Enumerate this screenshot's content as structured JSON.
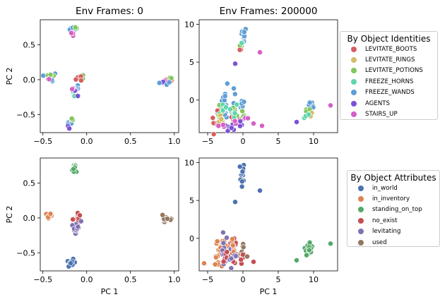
{
  "chart_data": [
    {
      "type": "scatter",
      "title": "Env Frames: 0",
      "xlabel": "",
      "ylabel": "PC 2",
      "xlim": [
        -0.53,
        1.05
      ],
      "ylim": [
        -0.76,
        0.86
      ],
      "xticks": [
        -0.5,
        0.0,
        0.5,
        1.0
      ],
      "xtick_labels": [
        "−0.5",
        "0.0",
        "0.5",
        "1.0"
      ],
      "yticks": [
        -0.5,
        0.0,
        0.5
      ],
      "ytick_labels": [
        "−0.5",
        "0.0",
        "0.5"
      ],
      "legend_ref": "identities",
      "clusters": [
        {
          "series": "FREEZE_WANDS",
          "x": -0.15,
          "y": 0.73,
          "sx": 0.02,
          "sy": 0.035,
          "n": 7
        },
        {
          "series": "LEVITATE_POTIONS",
          "x": -0.12,
          "y": 0.76,
          "sx": 0.01,
          "sy": 0.015,
          "n": 3
        },
        {
          "series": "STAIRS_UP",
          "x": -0.17,
          "y": 0.66,
          "sx": 0.01,
          "sy": 0.02,
          "n": 3
        },
        {
          "series": "FREEZE_WANDS",
          "x": -0.42,
          "y": 0.04,
          "sx": 0.03,
          "sy": 0.03,
          "n": 6
        },
        {
          "series": "LEVITATE_POTIONS",
          "x": -0.41,
          "y": 0.07,
          "sx": 0.02,
          "sy": 0.015,
          "n": 4
        },
        {
          "series": "STAIRS_UP",
          "x": -0.44,
          "y": 0.0,
          "sx": 0.01,
          "sy": 0.01,
          "n": 2
        },
        {
          "series": "LEVITATE_POTIONS",
          "x": -0.08,
          "y": 0.04,
          "sx": 0.025,
          "sy": 0.02,
          "n": 5
        },
        {
          "series": "LEVITATE_BOOTS",
          "x": -0.1,
          "y": 0.02,
          "sx": 0.02,
          "sy": 0.02,
          "n": 4
        },
        {
          "series": "FREEZE_WANDS",
          "x": -0.1,
          "y": -0.1,
          "sx": 0.02,
          "sy": 0.04,
          "n": 5
        },
        {
          "series": "FREEZE_HORNS",
          "x": -0.14,
          "y": -0.15,
          "sx": 0.02,
          "sy": 0.03,
          "n": 4
        },
        {
          "series": "AGENTS",
          "x": -0.13,
          "y": -0.18,
          "sx": 0.02,
          "sy": 0.02,
          "n": 3
        },
        {
          "series": "STAIRS_UP",
          "x": -0.16,
          "y": -0.13,
          "sx": 0.01,
          "sy": 0.02,
          "n": 2
        },
        {
          "series": "FREEZE_WANDS",
          "x": -0.18,
          "y": -0.62,
          "sx": 0.02,
          "sy": 0.03,
          "n": 6
        },
        {
          "series": "LEVITATE_POTIONS",
          "x": -0.17,
          "y": -0.58,
          "sx": 0.01,
          "sy": 0.015,
          "n": 3
        },
        {
          "series": "AGENTS",
          "x": -0.2,
          "y": -0.68,
          "sx": 0.01,
          "sy": 0.01,
          "n": 2
        },
        {
          "series": "LEVITATE_BOOTS",
          "x": 0.92,
          "y": 0.0,
          "sx": 0.03,
          "sy": 0.02,
          "n": 5
        },
        {
          "series": "LEVITATE_POTIONS",
          "x": 0.95,
          "y": 0.03,
          "sx": 0.01,
          "sy": 0.015,
          "n": 3
        },
        {
          "series": "STAIRS_UP",
          "x": 0.89,
          "y": -0.02,
          "sx": 0.01,
          "sy": 0.01,
          "n": 2
        },
        {
          "series": "AGENTS",
          "x": 0.87,
          "y": -0.04,
          "sx": 0.01,
          "sy": 0.01,
          "n": 2
        },
        {
          "series": "FREEZE_WANDS",
          "x": 0.9,
          "y": -0.05,
          "sx": 0.02,
          "sy": 0.01,
          "n": 3
        }
      ]
    },
    {
      "type": "scatter",
      "title": "Env Frames: 200000",
      "xlabel": "",
      "ylabel": "",
      "xlim": [
        -6.2,
        13.4
      ],
      "ylim": [
        -4.3,
        10.6
      ],
      "xticks": [
        -5,
        0,
        5,
        10
      ],
      "xtick_labels": [
        "−5",
        "0",
        "5",
        "10"
      ],
      "yticks": [
        0,
        5,
        10
      ],
      "ytick_labels": [
        "0",
        "5",
        "10"
      ],
      "legend_ref": "identities",
      "clusters": [
        {
          "series": "FREEZE_WANDS",
          "x": 0.0,
          "y": 8.7,
          "sx": 0.15,
          "sy": 0.6,
          "n": 9
        },
        {
          "series": "LEVITATE_POTIONS",
          "x": -0.3,
          "y": 7.3,
          "sx": 0.15,
          "sy": 0.35,
          "n": 5
        },
        {
          "series": "LEVITATE_BOOTS",
          "x": -0.35,
          "y": 6.4,
          "sx": 0.1,
          "sy": 0.15,
          "n": 3
        },
        {
          "series": "FREEZE_HORNS",
          "x": -0.1,
          "y": 7.7,
          "sx": 0.1,
          "sy": 0.2,
          "n": 2
        },
        {
          "series": "STAIRS_UP",
          "x": 2.4,
          "y": 6.3,
          "sx": 0.05,
          "sy": 0.05,
          "n": 1
        },
        {
          "series": "AGENTS",
          "x": -1.1,
          "y": 4.8,
          "sx": 0.05,
          "sy": 0.05,
          "n": 1
        },
        {
          "series": "FREEZE_WANDS",
          "x": -2.6,
          "y": -0.4,
          "sx": 0.25,
          "sy": 1.2,
          "n": 14
        },
        {
          "series": "LEVITATE_BOOTS",
          "x": -3.6,
          "y": -2.4,
          "sx": 0.3,
          "sy": 0.7,
          "n": 8
        },
        {
          "series": "LEVITATE_POTIONS",
          "x": -3.0,
          "y": -2.0,
          "sx": 0.3,
          "sy": 0.9,
          "n": 10
        },
        {
          "series": "FREEZE_HORNS",
          "x": -2.8,
          "y": -1.2,
          "sx": 0.2,
          "sy": 0.6,
          "n": 6
        },
        {
          "series": "LEVITATE_RINGS",
          "x": -3.2,
          "y": -2.8,
          "sx": 0.2,
          "sy": 0.5,
          "n": 5
        },
        {
          "series": "AGENTS",
          "x": -2.5,
          "y": -3.4,
          "sx": 0.5,
          "sy": 0.3,
          "n": 5
        },
        {
          "series": "STAIRS_UP",
          "x": -3.0,
          "y": -3.2,
          "sx": 0.3,
          "sy": 0.3,
          "n": 3
        },
        {
          "series": "FREEZE_WANDS",
          "x": -1.3,
          "y": -0.8,
          "sx": 0.2,
          "sy": 1.1,
          "n": 12
        },
        {
          "series": "LEVITATE_BOOTS",
          "x": -1.4,
          "y": -2.5,
          "sx": 0.2,
          "sy": 0.7,
          "n": 7
        },
        {
          "series": "LEVITATE_POTIONS",
          "x": -1.2,
          "y": -1.8,
          "sx": 0.2,
          "sy": 0.8,
          "n": 7
        },
        {
          "series": "FREEZE_HORNS",
          "x": -1.3,
          "y": -1.0,
          "sx": 0.15,
          "sy": 0.5,
          "n": 4
        },
        {
          "series": "AGENTS",
          "x": -1.5,
          "y": -3.5,
          "sx": 0.2,
          "sy": 0.25,
          "n": 4
        },
        {
          "series": "STAIRS_UP",
          "x": -1.0,
          "y": -3.0,
          "sx": 0.2,
          "sy": 0.3,
          "n": 3
        },
        {
          "series": "LEVITATE_BOOTS",
          "x": -0.2,
          "y": -2.2,
          "sx": 0.2,
          "sy": 0.5,
          "n": 5
        },
        {
          "series": "FREEZE_WANDS",
          "x": -0.1,
          "y": -1.0,
          "sx": 0.2,
          "sy": 0.6,
          "n": 6
        },
        {
          "series": "LEVITATE_POTIONS",
          "x": 0.0,
          "y": -1.6,
          "sx": 0.15,
          "sy": 0.5,
          "n": 4
        },
        {
          "series": "STAIRS_UP",
          "x": 0.1,
          "y": -2.5,
          "sx": 0.15,
          "sy": 0.3,
          "n": 3
        },
        {
          "series": "AGENTS",
          "x": -0.3,
          "y": -3.2,
          "sx": 0.2,
          "sy": 0.3,
          "n": 3
        },
        {
          "series": "STAIRS_UP",
          "x": 0.7,
          "y": -2.4,
          "sx": 0.05,
          "sy": 0.05,
          "n": 1
        },
        {
          "series": "STAIRS_UP",
          "x": 1.5,
          "y": -3.1,
          "sx": 0.05,
          "sy": 0.05,
          "n": 1
        },
        {
          "series": "STAIRS_UP",
          "x": 2.7,
          "y": -3.4,
          "sx": 0.05,
          "sy": 0.05,
          "n": 1
        },
        {
          "series": "FREEZE_WANDS",
          "x": 9.7,
          "y": -0.8,
          "sx": 0.3,
          "sy": 0.4,
          "n": 6
        },
        {
          "series": "LEVITATE_POTIONS",
          "x": 9.3,
          "y": -1.7,
          "sx": 0.3,
          "sy": 0.3,
          "n": 5
        },
        {
          "series": "LEVITATE_RINGS",
          "x": 9.4,
          "y": -1.9,
          "sx": 0.2,
          "sy": 0.2,
          "n": 3
        },
        {
          "series": "FREEZE_HORNS",
          "x": 9.0,
          "y": -2.2,
          "sx": 0.2,
          "sy": 0.2,
          "n": 3
        },
        {
          "series": "AGENTS",
          "x": 7.6,
          "y": -2.9,
          "sx": 0.05,
          "sy": 0.05,
          "n": 1
        },
        {
          "series": "STAIRS_UP",
          "x": 12.4,
          "y": -0.7,
          "sx": 0.05,
          "sy": 0.05,
          "n": 1
        }
      ]
    },
    {
      "type": "scatter",
      "title": "",
      "xlabel": "PC 1",
      "ylabel": "PC 2",
      "xlim": [
        -0.53,
        1.05
      ],
      "ylim": [
        -0.76,
        0.86
      ],
      "xticks": [
        -0.5,
        0.0,
        0.5,
        1.0
      ],
      "xtick_labels": [
        "−0.5",
        "0.0",
        "0.5",
        "1.0"
      ],
      "yticks": [
        -0.5,
        0.0,
        0.5
      ],
      "ytick_labels": [
        "−0.5",
        "0.0",
        "0.5"
      ],
      "legend_ref": "attributes",
      "clusters": [
        {
          "series": "standing_on_top",
          "x": -0.14,
          "y": 0.7,
          "sx": 0.02,
          "sy": 0.04,
          "n": 12
        },
        {
          "series": "in_inventory",
          "x": -0.42,
          "y": 0.04,
          "sx": 0.03,
          "sy": 0.025,
          "n": 10
        },
        {
          "series": "no_exist",
          "x": -0.1,
          "y": 0.0,
          "sx": 0.03,
          "sy": 0.035,
          "n": 12
        },
        {
          "series": "levitating",
          "x": -0.12,
          "y": -0.15,
          "sx": 0.03,
          "sy": 0.04,
          "n": 12
        },
        {
          "series": "in_world",
          "x": -0.18,
          "y": -0.63,
          "sx": 0.02,
          "sy": 0.03,
          "n": 10
        },
        {
          "series": "used",
          "x": 0.91,
          "y": -0.01,
          "sx": 0.035,
          "sy": 0.03,
          "n": 12
        }
      ]
    },
    {
      "type": "scatter",
      "title": "",
      "xlabel": "PC 1",
      "ylabel": "",
      "xlim": [
        -6.2,
        13.4
      ],
      "ylim": [
        -4.3,
        10.6
      ],
      "xticks": [
        -5,
        0,
        5,
        10
      ],
      "xtick_labels": [
        "−5",
        "0",
        "5",
        "10"
      ],
      "yticks": [
        0,
        5,
        10
      ],
      "ytick_labels": [
        "0",
        "5",
        "10"
      ],
      "legend_ref": "attributes",
      "clusters": [
        {
          "series": "in_world",
          "x": -0.1,
          "y": 8.3,
          "sx": 0.2,
          "sy": 0.8,
          "n": 14
        },
        {
          "series": "in_world",
          "x": 2.4,
          "y": 6.3,
          "sx": 0.05,
          "sy": 0.05,
          "n": 1
        },
        {
          "series": "in_world",
          "x": -1.1,
          "y": 4.8,
          "sx": 0.05,
          "sy": 0.05,
          "n": 1
        },
        {
          "series": "in_inventory",
          "x": -3.6,
          "y": -2.0,
          "sx": 0.5,
          "sy": 1.0,
          "n": 16
        },
        {
          "series": "in_inventory",
          "x": -2.8,
          "y": -1.0,
          "sx": 0.3,
          "sy": 0.8,
          "n": 8
        },
        {
          "series": "in_inventory",
          "x": -5.5,
          "y": -3.3,
          "sx": 0.05,
          "sy": 0.05,
          "n": 1
        },
        {
          "series": "levitating",
          "x": -2.7,
          "y": -1.5,
          "sx": 0.35,
          "sy": 1.1,
          "n": 10
        },
        {
          "series": "levitating",
          "x": -2.5,
          "y": -3.3,
          "sx": 0.4,
          "sy": 0.3,
          "n": 6
        },
        {
          "series": "no_exist",
          "x": -2.4,
          "y": -2.6,
          "sx": 0.3,
          "sy": 0.5,
          "n": 8
        },
        {
          "series": "no_exist",
          "x": -1.3,
          "y": -1.8,
          "sx": 0.2,
          "sy": 1.2,
          "n": 12
        },
        {
          "series": "in_inventory",
          "x": -1.4,
          "y": -1.2,
          "sx": 0.15,
          "sy": 0.9,
          "n": 8
        },
        {
          "series": "levitating",
          "x": -1.5,
          "y": -2.8,
          "sx": 0.2,
          "sy": 0.6,
          "n": 6
        },
        {
          "series": "used",
          "x": -0.2,
          "y": -1.4,
          "sx": 0.2,
          "sy": 0.9,
          "n": 10
        },
        {
          "series": "no_exist",
          "x": -0.1,
          "y": -2.4,
          "sx": 0.15,
          "sy": 0.5,
          "n": 4
        },
        {
          "series": "used",
          "x": 0.6,
          "y": -2.4,
          "sx": 0.05,
          "sy": 0.05,
          "n": 1
        },
        {
          "series": "no_exist",
          "x": 1.5,
          "y": -3.1,
          "sx": 0.05,
          "sy": 0.05,
          "n": 1
        },
        {
          "series": "standing_on_top",
          "x": 9.4,
          "y": -1.4,
          "sx": 0.35,
          "sy": 0.5,
          "n": 14
        },
        {
          "series": "standing_on_top",
          "x": 7.6,
          "y": -2.9,
          "sx": 0.05,
          "sy": 0.05,
          "n": 1
        },
        {
          "series": "standing_on_top",
          "x": 12.4,
          "y": -0.7,
          "sx": 0.05,
          "sy": 0.05,
          "n": 1
        }
      ]
    }
  ],
  "legends": {
    "identities": {
      "title": "By Object Identities",
      "items": [
        {
          "label": "LEVITATE_BOOTS",
          "color": "#d65f5f"
        },
        {
          "label": "LEVITATE_RINGS",
          "color": "#d5bb67"
        },
        {
          "label": "LEVITATE_POTIONS",
          "color": "#82c65f"
        },
        {
          "label": "FREEZE_HORNS",
          "color": "#5fd6ad"
        },
        {
          "label": "FREEZE_WANDS",
          "color": "#5f9ed6"
        },
        {
          "label": "AGENTS",
          "color": "#7b52d6"
        },
        {
          "label": "STAIRS_UP",
          "color": "#d65fc6"
        }
      ]
    },
    "attributes": {
      "title": "By Object Attributes",
      "items": [
        {
          "label": "in_world",
          "color": "#4c72b0"
        },
        {
          "label": "in_inventory",
          "color": "#dd8452"
        },
        {
          "label": "standing_on_top",
          "color": "#55a868"
        },
        {
          "label": "no_exist",
          "color": "#c44e52"
        },
        {
          "label": "levitating",
          "color": "#8172b3"
        },
        {
          "label": "used",
          "color": "#937860"
        }
      ]
    }
  }
}
